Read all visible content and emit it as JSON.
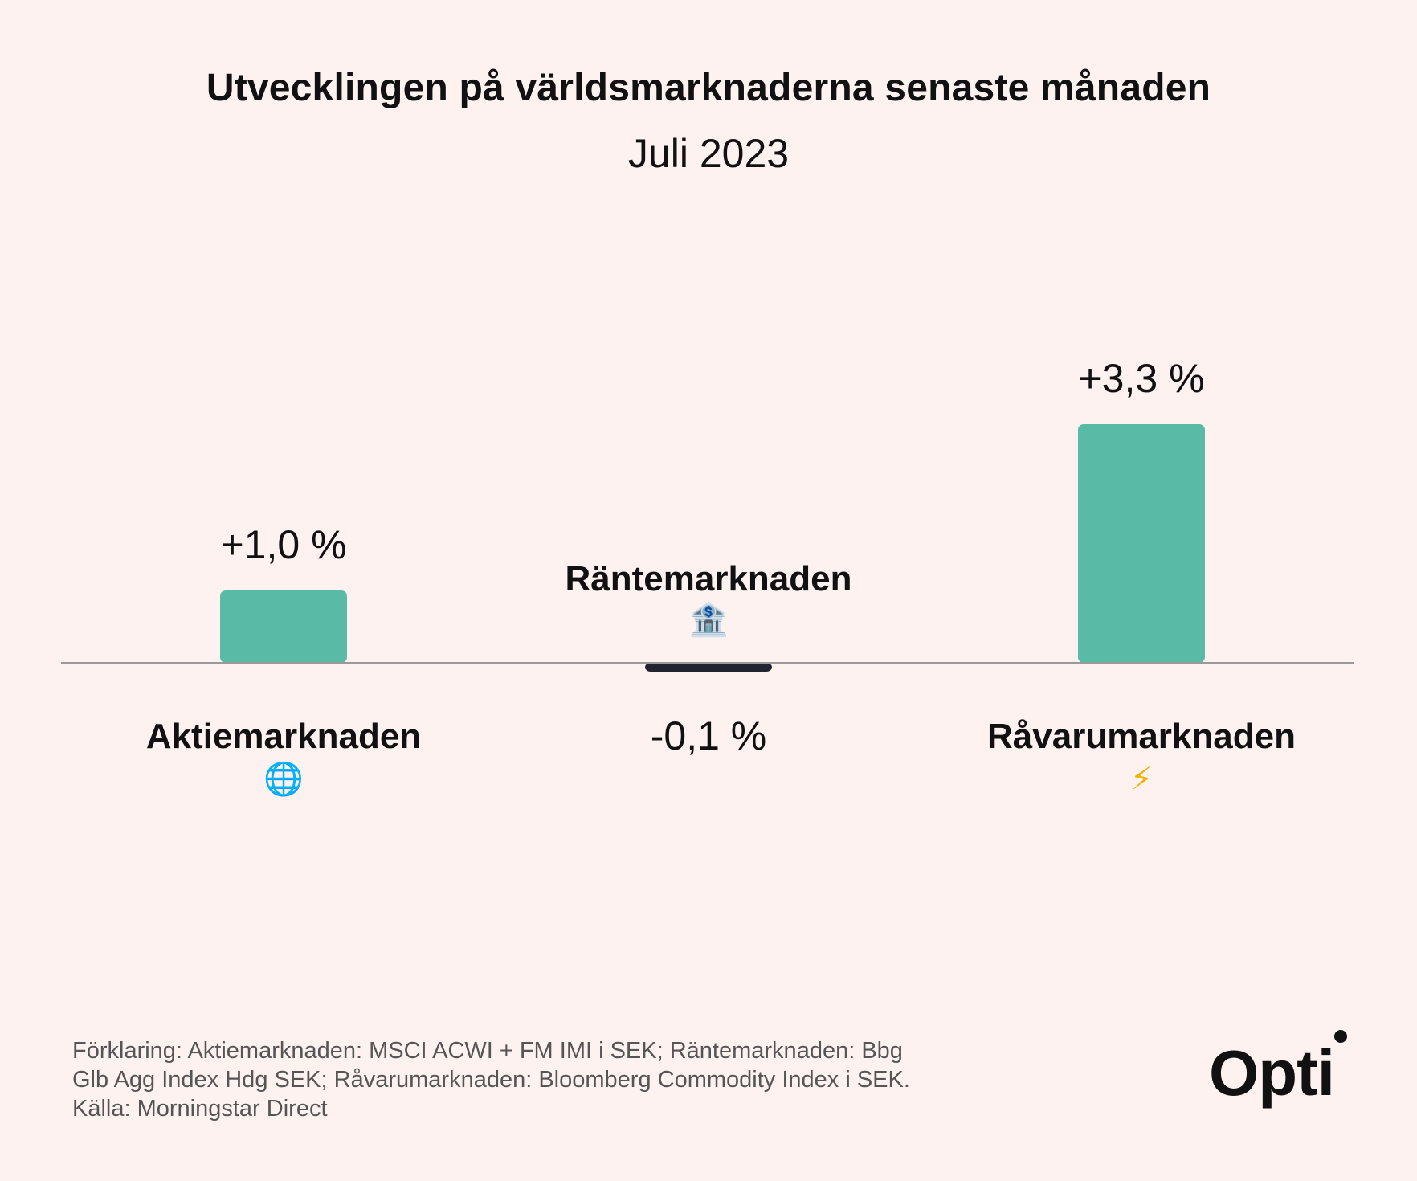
{
  "title": "Utvecklingen på världsmarknaderna senaste månaden",
  "subtitle": "Juli 2023",
  "colors": {
    "positive": "#59baa6",
    "negative": "#1f2430",
    "axis": "#9a9a9a",
    "background": "#fdf2ef"
  },
  "chart_data": {
    "type": "bar",
    "categories": [
      "Aktiemarknaden",
      "Räntemarknaden",
      "Råvarumarknaden"
    ],
    "values": [
      1.0,
      -0.1,
      3.3
    ],
    "value_labels": [
      "+1,0 %",
      "-0,1 %",
      "+3,3 %"
    ],
    "category_icons": [
      "globe-icon",
      "bank-icon",
      "lightning-icon"
    ],
    "unit": "%",
    "grid": false
  },
  "footnote": {
    "line1": "Förklaring: Aktiemarknaden: MSCI ACWI + FM IMI i SEK; Räntemarknaden: Bbg",
    "line2": "Glb Agg Index Hdg SEK; Råvarumarknaden: Bloomberg Commodity Index i SEK.",
    "line3": "Källa: Morningstar Direct"
  },
  "brand": {
    "name": "Opti"
  }
}
